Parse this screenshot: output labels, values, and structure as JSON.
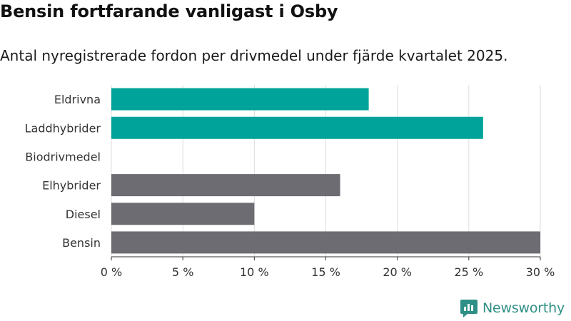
{
  "header": {
    "title": "Bensin fortfarande vanligast i Osby",
    "subtitle": "Antal nyregistrerade fordon per drivmedel under fjärde kvartalet 2025."
  },
  "brand": {
    "name": "Newsworthy",
    "icon": "newsworthy-logo-icon",
    "color": "#2f8f86"
  },
  "chart_data": {
    "type": "bar",
    "orientation": "horizontal",
    "categories": [
      "Eldrivna",
      "Laddhybrider",
      "Biodrivmedel",
      "Elhybrider",
      "Diesel",
      "Bensin"
    ],
    "values": [
      18,
      26,
      0,
      16,
      10,
      30
    ],
    "colors": [
      "#00a39a",
      "#00a39a",
      "#00a39a",
      "#6d6c72",
      "#6d6c72",
      "#6d6c72"
    ],
    "xlim": [
      0,
      30
    ],
    "xticks": [
      0,
      5,
      10,
      15,
      20,
      25,
      30
    ],
    "xtick_labels": [
      "0 %",
      "5 %",
      "10 %",
      "15 %",
      "20 %",
      "25 %",
      "30 %"
    ],
    "grid": true
  }
}
